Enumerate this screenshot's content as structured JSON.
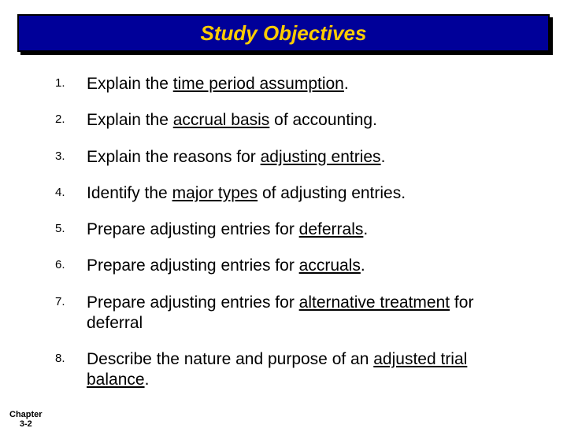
{
  "title": "Study Objectives",
  "colors": {
    "banner_bg": "#000099",
    "banner_text": "#ffcc00",
    "banner_border": "#000000",
    "body_text": "#000000",
    "page_bg": "#ffffff"
  },
  "typography": {
    "title_fontsize": 26,
    "title_style": "bold italic",
    "body_fontsize": 21,
    "number_fontsize": 15,
    "footer_fontsize": 11,
    "font_family": "Comic Sans MS"
  },
  "objectives": [
    {
      "number": "1.",
      "pre": "Explain the ",
      "u": "time period assumption",
      "post": "."
    },
    {
      "number": "2.",
      "pre": "Explain the ",
      "u": "accrual basis",
      "post": " of accounting."
    },
    {
      "number": "3.",
      "pre": "Explain the reasons for ",
      "u": "adjusting entries",
      "post": "."
    },
    {
      "number": "4.",
      "pre": "Identify the ",
      "u": "major types",
      "post": " of adjusting entries."
    },
    {
      "number": "5.",
      "pre": "Prepare adjusting entries for ",
      "u": "deferrals",
      "post": "."
    },
    {
      "number": "6.",
      "pre": "Prepare adjusting entries for ",
      "u": "accruals",
      "post": "."
    },
    {
      "number": "7.",
      "pre": "Prepare adjusting entries for ",
      "u": "alternative treatment",
      "post": " for deferral"
    },
    {
      "number": "8.",
      "pre": "Describe the nature and purpose of an ",
      "u": "adjusted trial balance",
      "post": "."
    }
  ],
  "footer": {
    "line1": "Chapter",
    "line2": "3-2"
  }
}
